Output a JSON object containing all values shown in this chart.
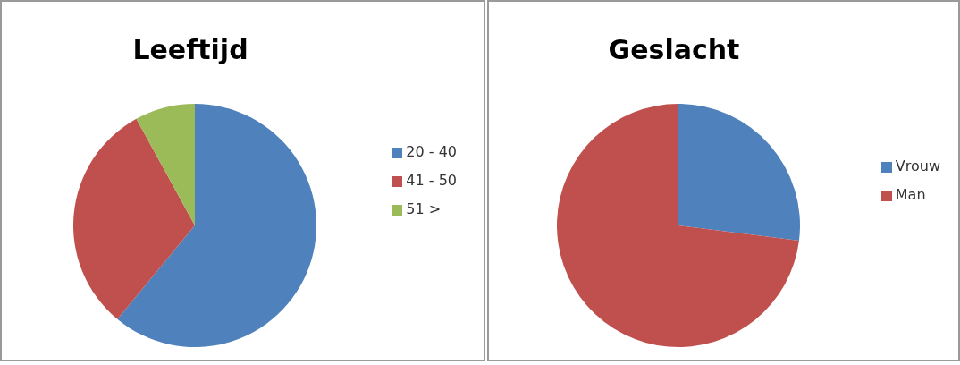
{
  "chart_data": [
    {
      "type": "pie",
      "title": "Leeftijd",
      "categories": [
        "20 - 40",
        "41 - 50",
        "51 >"
      ],
      "values": [
        61,
        31,
        8
      ],
      "colors": [
        "#4f81bd",
        "#c0504d",
        "#9bbb59"
      ],
      "legend": "right"
    },
    {
      "type": "pie",
      "title": "Geslacht",
      "categories": [
        "Vrouw",
        "Man"
      ],
      "values": [
        27,
        73
      ],
      "colors": [
        "#4f81bd",
        "#c0504d"
      ],
      "legend": "right"
    }
  ]
}
